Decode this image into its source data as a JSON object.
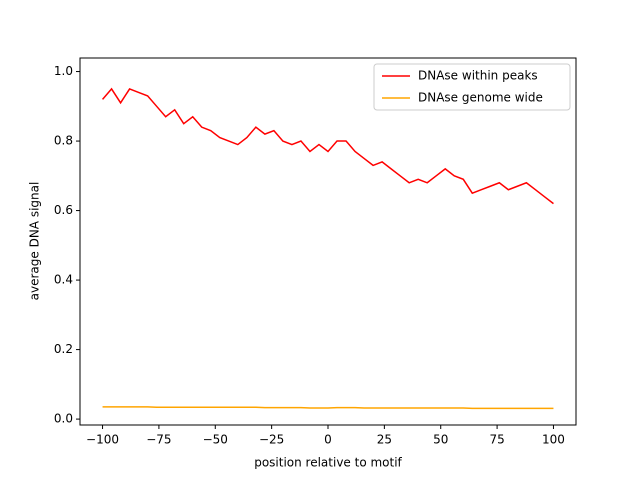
{
  "chart_data": {
    "type": "line",
    "xlabel": "position relative to motif",
    "ylabel": "average DNA signal",
    "x": [
      -100,
      -96,
      -92,
      -88,
      -84,
      -80,
      -76,
      -72,
      -68,
      -64,
      -60,
      -56,
      -52,
      -48,
      -44,
      -40,
      -36,
      -32,
      -28,
      -24,
      -20,
      -16,
      -12,
      -8,
      -4,
      0,
      4,
      8,
      12,
      16,
      20,
      24,
      28,
      32,
      36,
      40,
      44,
      48,
      52,
      56,
      60,
      64,
      68,
      72,
      76,
      80,
      84,
      88,
      92,
      96,
      100
    ],
    "series": [
      {
        "name": "DNAse within peaks",
        "color": "#ff0000",
        "values": [
          0.92,
          0.95,
          0.91,
          0.95,
          0.94,
          0.93,
          0.9,
          0.87,
          0.89,
          0.85,
          0.87,
          0.84,
          0.83,
          0.81,
          0.8,
          0.79,
          0.81,
          0.84,
          0.82,
          0.83,
          0.8,
          0.79,
          0.8,
          0.77,
          0.79,
          0.77,
          0.8,
          0.8,
          0.77,
          0.75,
          0.73,
          0.74,
          0.72,
          0.7,
          0.68,
          0.69,
          0.68,
          0.7,
          0.72,
          0.7,
          0.69,
          0.65,
          0.66,
          0.67,
          0.68,
          0.66,
          0.67,
          0.68,
          0.66,
          0.64,
          0.62
        ]
      },
      {
        "name": "DNAse genome wide",
        "color": "#ffa500",
        "values": [
          0.035,
          0.035,
          0.035,
          0.035,
          0.035,
          0.035,
          0.034,
          0.034,
          0.034,
          0.034,
          0.034,
          0.034,
          0.034,
          0.034,
          0.034,
          0.034,
          0.034,
          0.034,
          0.033,
          0.033,
          0.033,
          0.033,
          0.033,
          0.032,
          0.032,
          0.032,
          0.033,
          0.033,
          0.033,
          0.032,
          0.032,
          0.032,
          0.032,
          0.032,
          0.032,
          0.032,
          0.032,
          0.032,
          0.032,
          0.032,
          0.032,
          0.031,
          0.031,
          0.031,
          0.031,
          0.031,
          0.031,
          0.031,
          0.031,
          0.031,
          0.031
        ]
      }
    ],
    "xlim": [
      -110,
      110
    ],
    "ylim": [
      -0.017,
      1.039
    ],
    "xticks": [
      {
        "value": -100,
        "label": "−100"
      },
      {
        "value": -75,
        "label": "−75"
      },
      {
        "value": -50,
        "label": "−50"
      },
      {
        "value": -25,
        "label": "−25"
      },
      0,
      25,
      50,
      75,
      100
    ],
    "yticks": [
      {
        "value": 0,
        "label": "0.0"
      },
      0.2,
      0.4,
      0.6,
      0.8,
      {
        "value": 1,
        "label": "1.0"
      }
    ],
    "legend": "upper right"
  }
}
